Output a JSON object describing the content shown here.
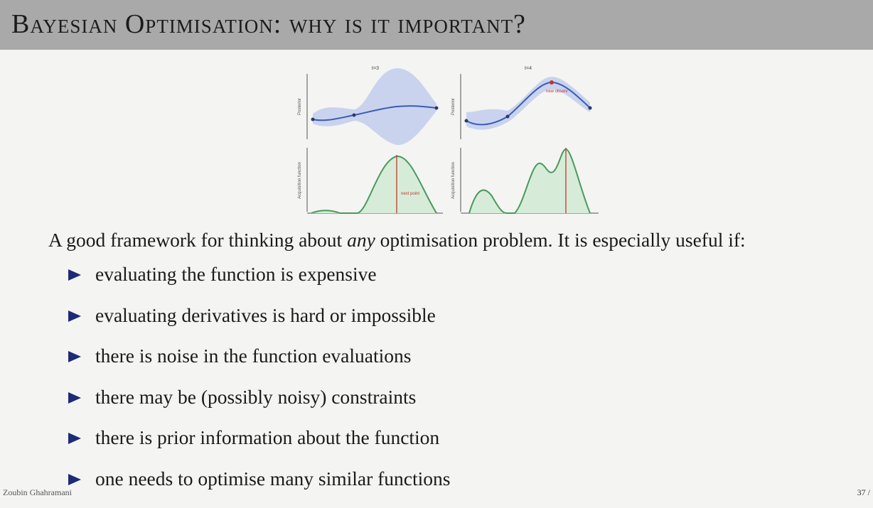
{
  "slide": {
    "title": "Bayesian Optimisation: why is it important?",
    "intro": {
      "before": "A good framework for thinking about ",
      "emphasis": "any",
      "after": " optimisation problem. It is especially useful if:"
    },
    "bullets": [
      "evaluating the function is expensive",
      "evaluating derivatives is hard or impossible",
      "there is noise in the function evaluations",
      "there may be (possibly noisy) constraints",
      "there is prior information about the function",
      "one needs to optimise many similar functions"
    ],
    "footer": {
      "author": "Zoubin Ghahramani",
      "page": "37 /"
    }
  },
  "figure": {
    "panels": [
      {
        "panel_title": "t=3",
        "posterior_ylabel": "Posterior",
        "acquisition_ylabel": "Acquisition function",
        "annotation": "next point",
        "annotation_color": "#c0392b"
      },
      {
        "panel_title": "t=4",
        "posterior_ylabel": "Posterior",
        "acquisition_ylabel": "Acquisition function",
        "annotation": "new observ",
        "annotation_color": "#c0392b"
      }
    ],
    "colors": {
      "posterior_mean": "#3b5bb5",
      "posterior_band": "#c9d3ee",
      "acquisition_line": "#4a9a5c",
      "acquisition_fill": "#d6ecd9",
      "marker": "#c0392b",
      "observation": "#2d3a6a"
    }
  }
}
